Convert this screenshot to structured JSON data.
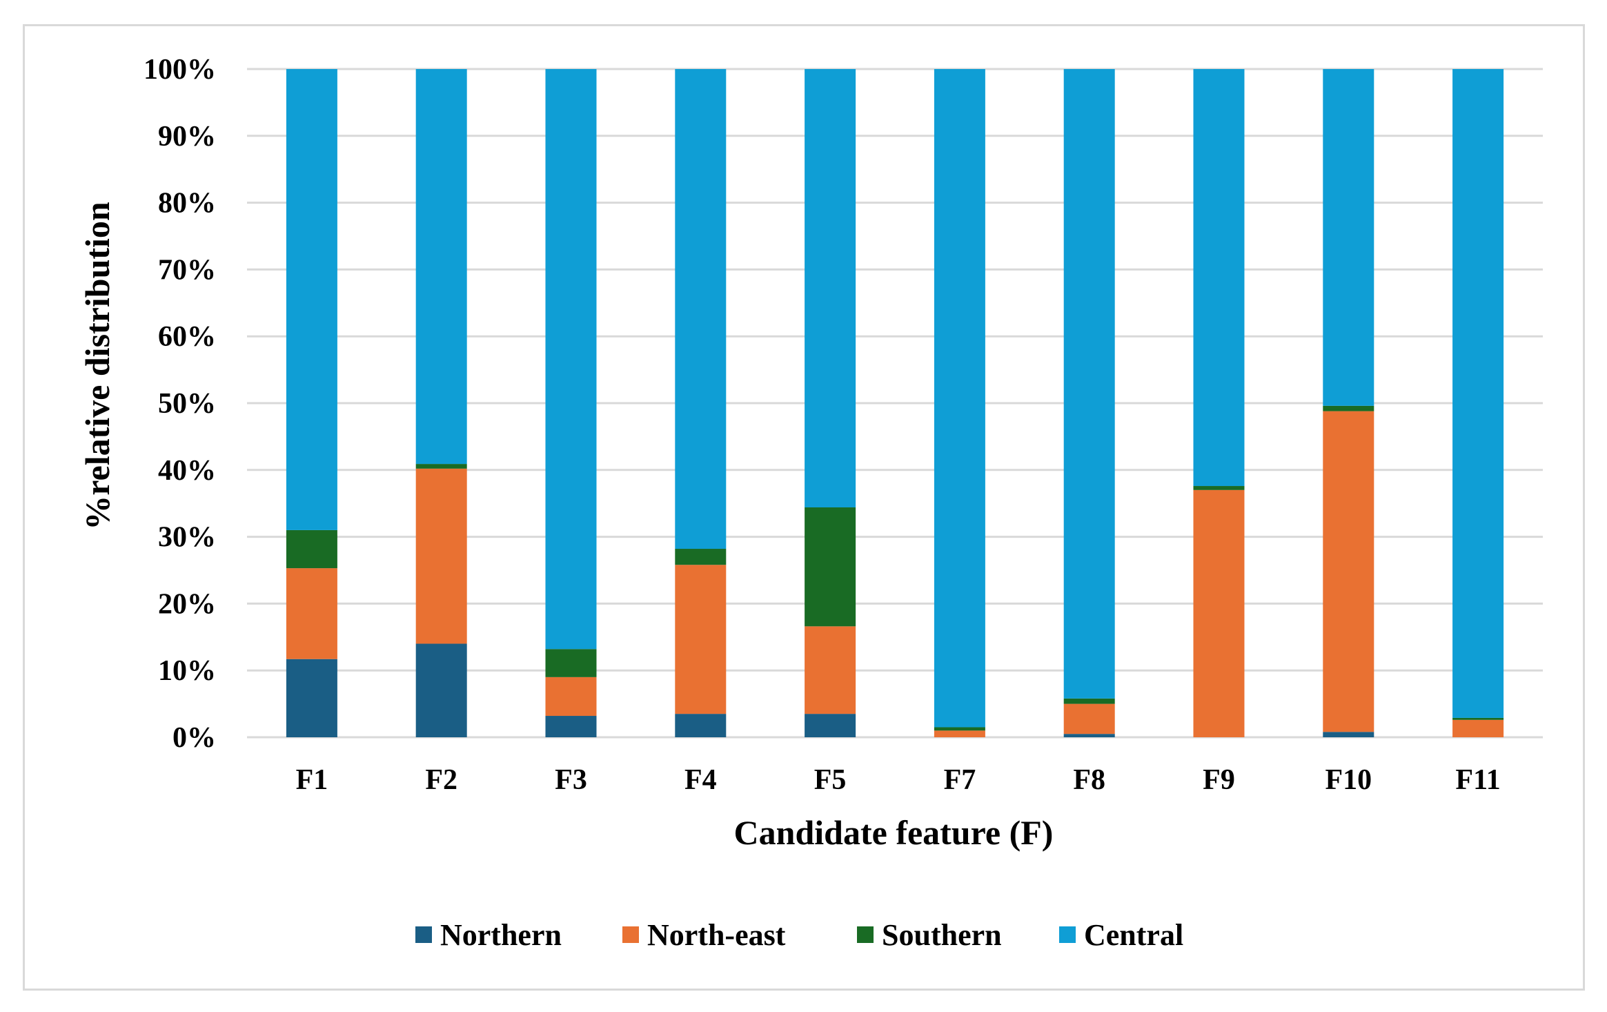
{
  "chart_data": {
    "type": "bar",
    "stacked": true,
    "categories": [
      "F1",
      "F2",
      "F3",
      "F4",
      "F5",
      "F7",
      "F8",
      "F9",
      "F10",
      "F11"
    ],
    "series": [
      {
        "name": "Northern",
        "color": "#1a5e85",
        "values": [
          11.7,
          14,
          3.2,
          3.5,
          3.5,
          0,
          0.5,
          0,
          0.8,
          0
        ]
      },
      {
        "name": "North-east",
        "color": "#e97132",
        "values": [
          13.6,
          26.2,
          5.8,
          22.3,
          13.1,
          1,
          4.5,
          37,
          48,
          2.6
        ]
      },
      {
        "name": "Southern",
        "color": "#196b24",
        "values": [
          5.7,
          0.7,
          4.2,
          2.4,
          17.8,
          0.5,
          0.8,
          0.6,
          0.8,
          0.3
        ]
      },
      {
        "name": "Central",
        "color": "#0f9ed5",
        "values": [
          69,
          59.1,
          86.8,
          71.8,
          65.6,
          98.5,
          94.2,
          62.4,
          50.4,
          97.1
        ]
      }
    ],
    "yticks": [
      "0%",
      "10%",
      "20%",
      "30%",
      "40%",
      "50%",
      "60%",
      "70%",
      "80%",
      "90%",
      "100%"
    ],
    "ylim": [
      0,
      100
    ],
    "xlabel": "Candidate feature (F)",
    "ylabel": "%relative distribution",
    "legend_position": "bottom",
    "grid": true
  }
}
